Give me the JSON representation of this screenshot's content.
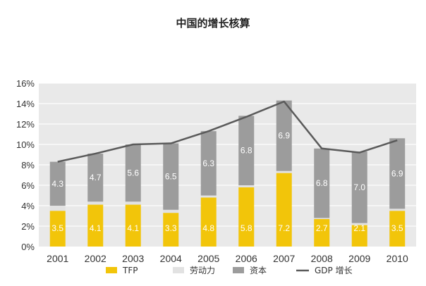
{
  "chart_data": {
    "type": "bar",
    "title": "中国的增长核算",
    "categories": [
      "2001",
      "2002",
      "2003",
      "2004",
      "2005",
      "2006",
      "2007",
      "2008",
      "2009",
      "2010"
    ],
    "series": [
      {
        "name": "TFP",
        "color": "#f2c50a",
        "values": [
          3.5,
          4.1,
          4.1,
          3.3,
          4.8,
          5.8,
          7.2,
          2.7,
          2.1,
          3.5
        ]
      },
      {
        "name": "劳动力",
        "color": "#e2e2e2",
        "values": [
          0.5,
          0.3,
          0.3,
          0.3,
          0.2,
          0.2,
          0.2,
          0.1,
          0.2,
          0.2
        ]
      },
      {
        "name": "资本",
        "color": "#9c9c9c",
        "values": [
          4.3,
          4.7,
          5.6,
          6.5,
          6.3,
          6.8,
          6.9,
          6.8,
          7.0,
          6.9
        ]
      }
    ],
    "line_series": {
      "name": "GDP 增长",
      "color": "#5a5a5a",
      "values": [
        8.3,
        9.1,
        10.0,
        10.1,
        11.3,
        12.7,
        14.2,
        9.6,
        9.2,
        10.4
      ]
    },
    "yticks": [
      "0%",
      "2%",
      "4%",
      "6%",
      "8%",
      "10%",
      "12%",
      "14%",
      "16%"
    ],
    "ylim": [
      0,
      16
    ],
    "stacked": true,
    "grid": true,
    "legend_position": "bottom"
  }
}
